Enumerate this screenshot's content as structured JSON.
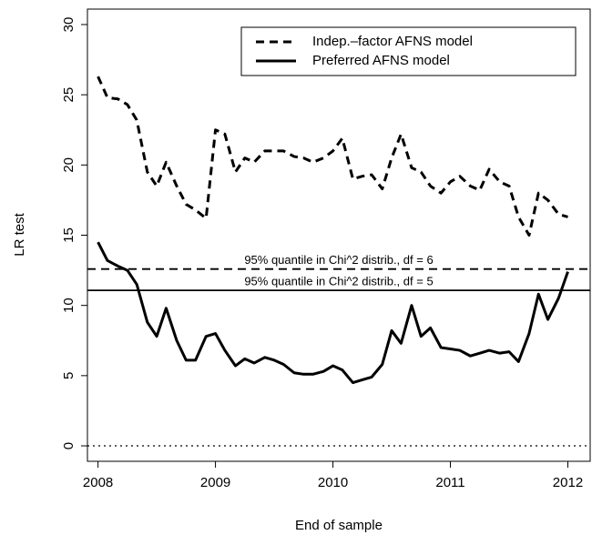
{
  "chart_data": {
    "type": "line",
    "x_label": "End of sample",
    "y_label": "LR test",
    "x": [
      2008.0,
      2008.08,
      2008.17,
      2008.25,
      2008.33,
      2008.42,
      2008.5,
      2008.58,
      2008.67,
      2008.75,
      2008.83,
      2008.92,
      2009.0,
      2009.08,
      2009.17,
      2009.25,
      2009.33,
      2009.42,
      2009.5,
      2009.58,
      2009.67,
      2009.75,
      2009.83,
      2009.92,
      2010.0,
      2010.08,
      2010.17,
      2010.25,
      2010.33,
      2010.42,
      2010.5,
      2010.58,
      2010.67,
      2010.75,
      2010.83,
      2010.92,
      2011.0,
      2011.08,
      2011.17,
      2011.25,
      2011.33,
      2011.42,
      2011.5,
      2011.58,
      2011.67,
      2011.75,
      2011.83,
      2011.92,
      2012.0
    ],
    "series": [
      {
        "name": "Indep.–factor AFNS model",
        "color": "#000000",
        "style": "dashed",
        "values": [
          26.3,
          24.8,
          24.7,
          24.3,
          23.2,
          19.5,
          18.5,
          20.2,
          18.5,
          17.2,
          16.8,
          16.2,
          22.5,
          22.2,
          19.5,
          20.5,
          20.2,
          21.0,
          21.0,
          21.0,
          20.6,
          20.5,
          20.2,
          20.5,
          21.0,
          21.9,
          19.0,
          19.2,
          19.3,
          18.3,
          20.5,
          22.2,
          19.8,
          19.5,
          18.5,
          18.0,
          18.8,
          19.2,
          18.5,
          18.2,
          19.7,
          18.8,
          18.5,
          16.3,
          15.0,
          18.0,
          17.5,
          16.5,
          16.3
        ]
      },
      {
        "name": "Preferred AFNS model",
        "color": "#000000",
        "style": "solid",
        "values": [
          14.5,
          13.2,
          12.8,
          12.5,
          11.5,
          8.8,
          7.8,
          9.8,
          7.5,
          6.1,
          6.1,
          7.8,
          8.0,
          6.8,
          5.7,
          6.2,
          5.9,
          6.3,
          6.1,
          5.8,
          5.2,
          5.1,
          5.1,
          5.3,
          5.7,
          5.4,
          4.5,
          4.7,
          4.9,
          5.8,
          8.2,
          7.3,
          10.0,
          7.8,
          8.4,
          7.0,
          6.9,
          6.8,
          6.4,
          6.6,
          6.8,
          6.6,
          6.7,
          6.0,
          8.0,
          10.8,
          9.0,
          10.5,
          12.4
        ]
      }
    ],
    "reference_lines": [
      {
        "value": 12.59,
        "style": "dashed",
        "label": "95% quantile in Chi^2 distrib., df = 6"
      },
      {
        "value": 11.07,
        "style": "solid",
        "label": "95% quantile in Chi^2 distrib., df = 5"
      },
      {
        "value": 0,
        "style": "dotted"
      }
    ],
    "xlim": [
      2007.91,
      2012.19
    ],
    "xticks": [
      2008,
      2009,
      2010,
      2011,
      2012
    ],
    "ylim": [
      -1.1,
      31.1
    ],
    "yticks": [
      0,
      5,
      10,
      15,
      20,
      25,
      30
    ],
    "legend": "top-right"
  }
}
